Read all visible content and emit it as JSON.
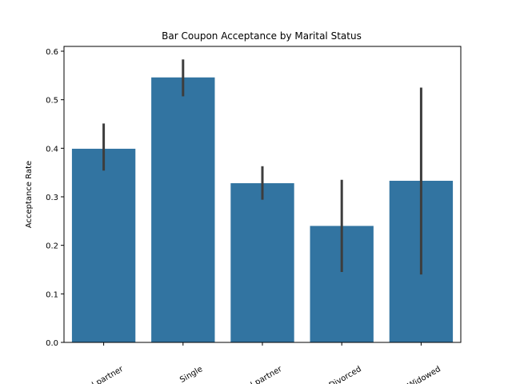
{
  "chart_data": {
    "type": "bar",
    "title": "Bar Coupon Acceptance by Marital Status",
    "xlabel": "",
    "ylabel": "Acceptance Rate",
    "categories": [
      "Married partner",
      "Single",
      "Unmarried partner",
      "Divorced",
      "Widowed"
    ],
    "tick_labels_visible": [
      "ied partner",
      "Single",
      "ied partner",
      "Divorced",
      "Widowed"
    ],
    "values": [
      0.399,
      0.546,
      0.328,
      0.24,
      0.333
    ],
    "error_bars": [
      [
        0.354,
        0.451
      ],
      [
        0.507,
        0.583
      ],
      [
        0.294,
        0.363
      ],
      [
        0.145,
        0.335
      ],
      [
        0.14,
        0.525
      ]
    ],
    "y_ticks": [
      "0.0",
      "0.1",
      "0.2",
      "0.3",
      "0.4",
      "0.5",
      "0.6"
    ],
    "ylim": [
      0,
      0.6
    ],
    "grid": false,
    "bar_color": "#3274a1",
    "error_color": "#3d3d3d"
  }
}
